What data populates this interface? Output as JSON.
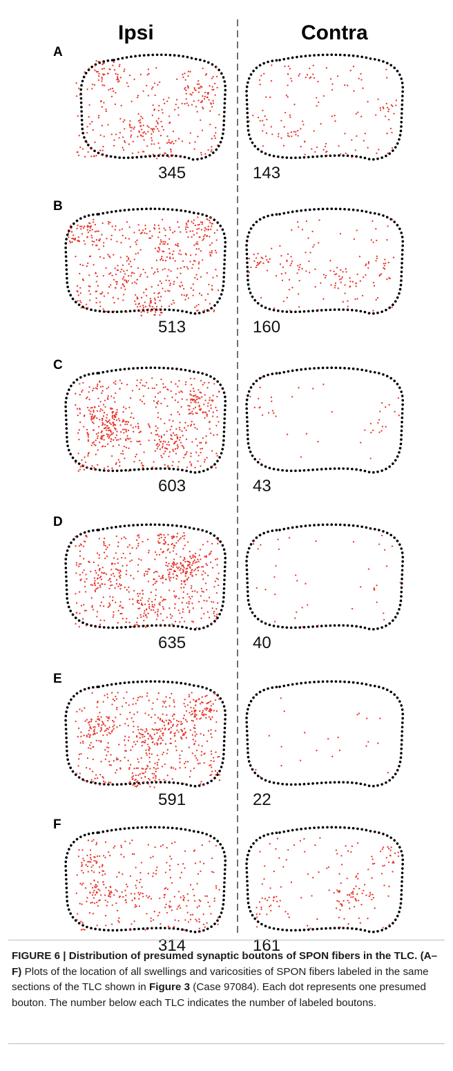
{
  "figure": {
    "columns": {
      "left": "Ipsi",
      "right": "Contra"
    },
    "panels": [
      {
        "letter": "A",
        "ipsi_count": "345",
        "contra_count": "143"
      },
      {
        "letter": "B",
        "ipsi_count": "513",
        "contra_count": "160"
      },
      {
        "letter": "C",
        "ipsi_count": "603",
        "contra_count": "43"
      },
      {
        "letter": "D",
        "ipsi_count": "635",
        "contra_count": "40"
      },
      {
        "letter": "E",
        "ipsi_count": "591",
        "contra_count": "22"
      },
      {
        "letter": "F",
        "ipsi_count": "314",
        "contra_count": "161"
      }
    ],
    "dot_color": "#e8332a",
    "outline_color": "#000000"
  },
  "caption": {
    "label": "FIGURE 6 | Distribution of presumed synaptic boutons of SPON fibers in the TLC.",
    "panel_range": "(A–F)",
    "text_1": "Plots of the location of all swellings and varicosities of SPON fibers labeled in the same sections of the TLC shown in",
    "figure_ref": "Figure 3",
    "text_2": "(Case 97084). Each dot represents one presumed bouton. The number below each TLC indicates the number of labeled boutons."
  }
}
